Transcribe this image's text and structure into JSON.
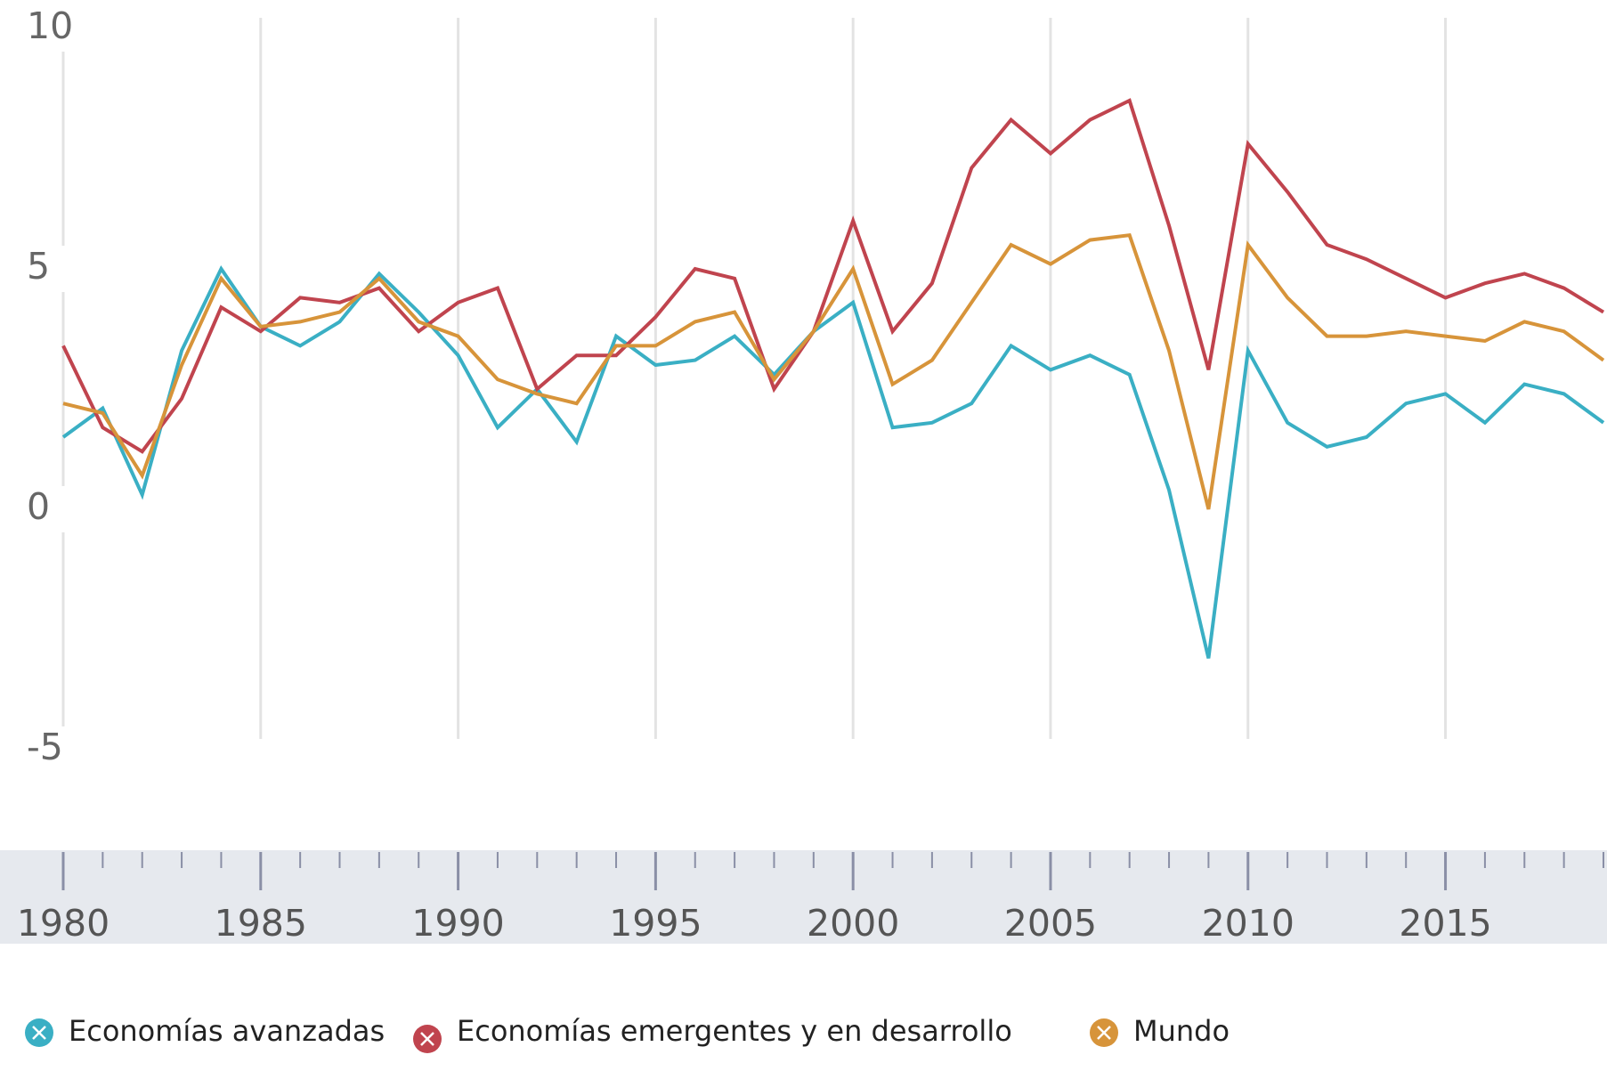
{
  "chart_data": {
    "type": "line",
    "x": [
      1980,
      1981,
      1982,
      1983,
      1984,
      1985,
      1986,
      1987,
      1988,
      1989,
      1990,
      1991,
      1992,
      1993,
      1994,
      1995,
      1996,
      1997,
      1998,
      1999,
      2000,
      2001,
      2002,
      2003,
      2004,
      2005,
      2006,
      2007,
      2008,
      2009,
      2010,
      2011,
      2012,
      2013,
      2014,
      2015,
      2016,
      2017,
      2018,
      2019
    ],
    "series": [
      {
        "name": "Economías avanzadas",
        "color": "#3aafc4",
        "values": [
          1.5,
          2.1,
          0.3,
          3.3,
          5.0,
          3.8,
          3.4,
          3.9,
          4.9,
          4.1,
          3.2,
          1.7,
          2.5,
          1.4,
          3.6,
          3.0,
          3.1,
          3.6,
          2.8,
          3.7,
          4.3,
          1.7,
          1.8,
          2.2,
          3.4,
          2.9,
          3.2,
          2.8,
          0.4,
          -3.1,
          3.3,
          1.8,
          1.3,
          1.5,
          2.2,
          2.4,
          1.8,
          2.6,
          2.4,
          1.8
        ]
      },
      {
        "name": "Economías emergentes y en desarrollo",
        "color": "#c0444e",
        "values": [
          3.4,
          1.7,
          1.2,
          2.3,
          4.2,
          3.7,
          4.4,
          4.3,
          4.6,
          3.7,
          4.3,
          4.6,
          2.5,
          3.2,
          3.2,
          4.0,
          5.0,
          4.8,
          2.5,
          3.7,
          6.0,
          3.7,
          4.7,
          7.1,
          8.1,
          7.4,
          8.1,
          8.5,
          5.9,
          2.9,
          7.6,
          6.6,
          5.5,
          5.2,
          4.8,
          4.4,
          4.7,
          4.9,
          4.6,
          4.1
        ]
      },
      {
        "name": "Mundo",
        "color": "#d7943a",
        "values": [
          2.2,
          2.0,
          0.7,
          3.0,
          4.8,
          3.8,
          3.9,
          4.1,
          4.8,
          3.9,
          3.6,
          2.7,
          2.4,
          2.2,
          3.4,
          3.4,
          3.9,
          4.1,
          2.7,
          3.7,
          5.0,
          2.6,
          3.1,
          4.3,
          5.5,
          5.1,
          5.6,
          5.7,
          3.3,
          0.0,
          5.5,
          4.4,
          3.6,
          3.6,
          3.7,
          3.6,
          3.5,
          3.9,
          3.7,
          3.1
        ]
      }
    ],
    "xlim": [
      1980,
      2019
    ],
    "xticks": [
      1980,
      1985,
      1990,
      1995,
      2000,
      2005,
      2010,
      2015
    ],
    "ylim": [
      -5,
      10
    ],
    "yticks": [
      -5,
      0,
      5,
      10
    ],
    "grid": true
  }
}
